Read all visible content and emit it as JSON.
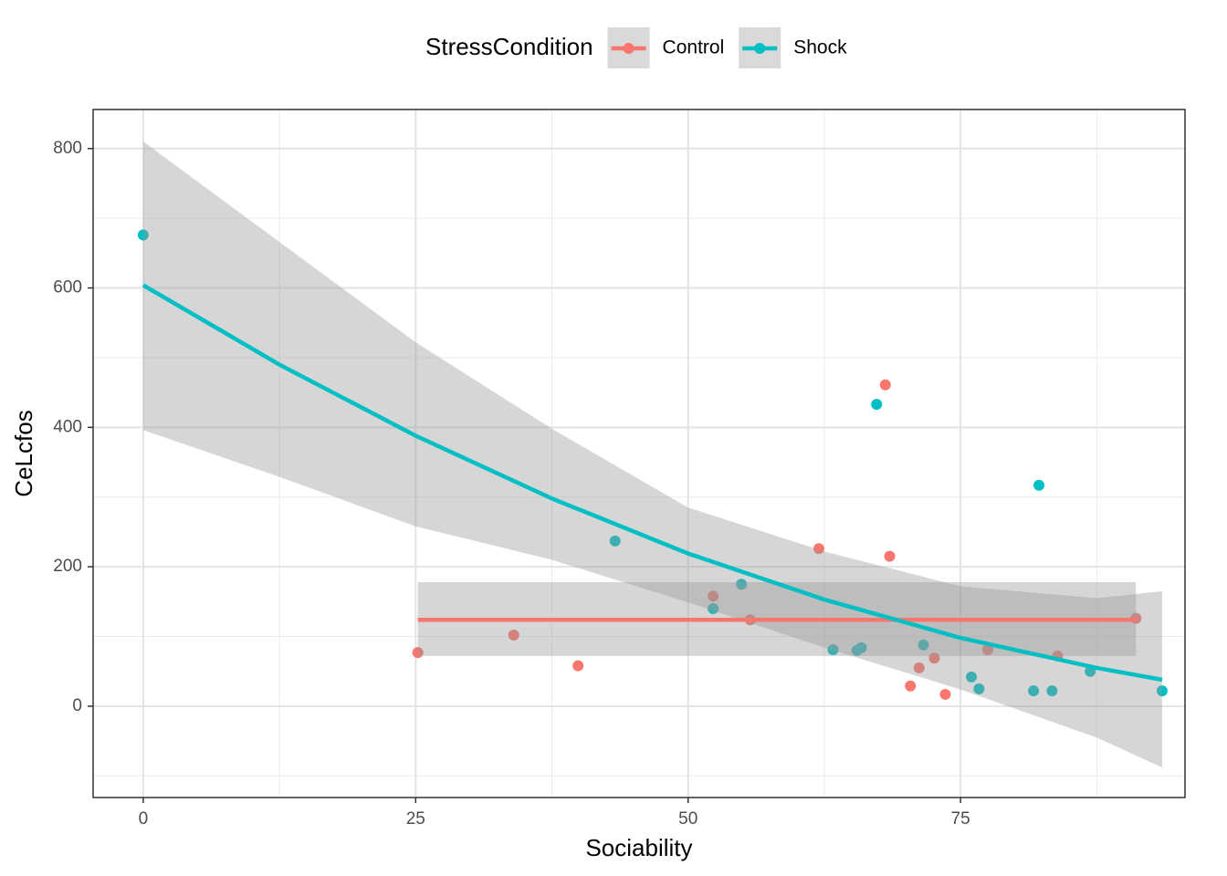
{
  "chart_data": {
    "type": "scatter",
    "x_label": "Sociability",
    "y_label": "CeLcfos",
    "legend_title": "StressCondition",
    "legend_position": "top",
    "grid": true,
    "xlim": [
      -4.6,
      95.6
    ],
    "ylim": [
      -131,
      856
    ],
    "xticks": [
      0,
      25,
      50,
      75
    ],
    "yticks": [
      0,
      200,
      400,
      600,
      800
    ],
    "xminor": [
      12.5,
      37.5,
      62.5,
      87.5
    ],
    "yminor": [
      -100,
      100,
      300,
      500,
      700
    ],
    "series": [
      {
        "name": "Control",
        "color": "#F8766D",
        "x": [
          25.2,
          34.0,
          39.9,
          52.3,
          55.7,
          62.0,
          68.1,
          68.5,
          70.4,
          71.2,
          72.6,
          73.6,
          77.5,
          83.9,
          91.1
        ],
        "values": [
          77,
          102,
          58,
          158,
          124,
          226,
          461,
          215,
          29,
          55,
          69,
          17,
          81,
          72,
          126
        ],
        "fit": {
          "x": [
            25.2,
            91.1
          ],
          "y": [
            124,
            124
          ],
          "ymin": [
            72,
            72
          ],
          "ymax": [
            178,
            178
          ]
        }
      },
      {
        "name": "Shock",
        "color": "#00BFC4",
        "x": [
          0,
          43.3,
          52.3,
          54.9,
          63.3,
          65.5,
          65.9,
          67.3,
          71.6,
          76.0,
          76.7,
          82.2,
          81.7,
          83.4,
          86.9,
          93.5
        ],
        "values": [
          676,
          237,
          140,
          175,
          81,
          80,
          84,
          433,
          88,
          42,
          25,
          317,
          22,
          22,
          50,
          22
        ],
        "fit": {
          "x": [
            0,
            12.5,
            25,
            37.5,
            50,
            62.5,
            75,
            87.5,
            93.5
          ],
          "y": [
            604,
            490,
            388,
            298,
            219,
            153,
            98,
            55,
            38
          ],
          "ymin": [
            396,
            329,
            258,
            210,
            149,
            84,
            24,
            -45,
            -88
          ],
          "ymax": [
            810,
            666,
            522,
            398,
            285,
            222,
            172,
            155,
            165
          ]
        }
      }
    ]
  }
}
